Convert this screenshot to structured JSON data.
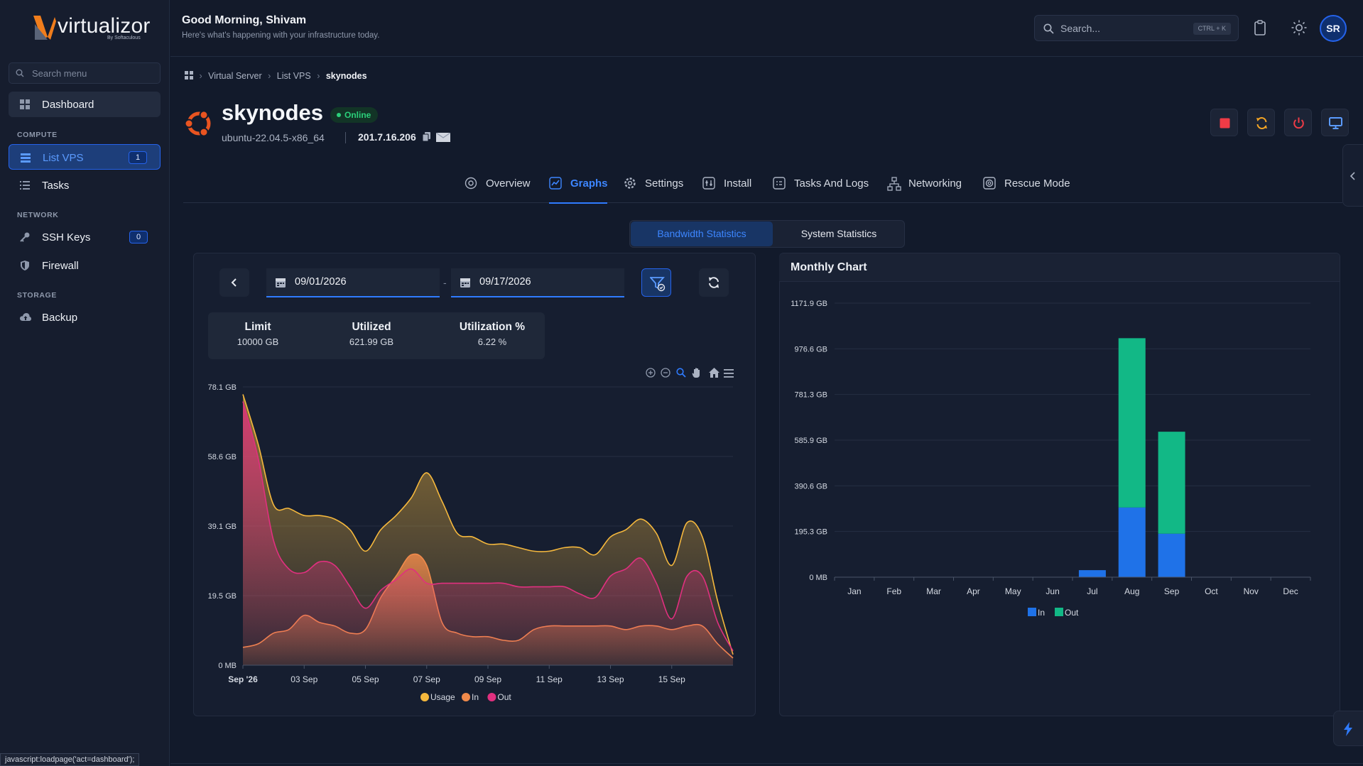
{
  "app": {
    "logo_text": "virtualizor",
    "logo_sub": "By Softaculous"
  },
  "sidebar": {
    "search_placeholder": "Search menu",
    "dashboard": "Dashboard",
    "sections": {
      "compute": "COMPUTE",
      "network": "NETWORK",
      "storage": "STORAGE"
    },
    "items": {
      "list_vps": {
        "label": "List VPS",
        "count": "1"
      },
      "tasks": {
        "label": "Tasks"
      },
      "ssh_keys": {
        "label": "SSH Keys",
        "count": "0"
      },
      "firewall": {
        "label": "Firewall"
      },
      "backup": {
        "label": "Backup"
      }
    },
    "status_url": "javascript:loadpage('act=dashboard');"
  },
  "header": {
    "greeting": "Good Morning, Shivam",
    "subtitle": "Here's what's happening with your infrastructure today.",
    "search_placeholder": "Search...",
    "search_shortcut": "CTRL + K",
    "avatar": "SR"
  },
  "breadcrumb": {
    "item1": "Virtual Server",
    "item2": "List VPS",
    "current": "skynodes"
  },
  "vps": {
    "name": "skynodes",
    "status": "Online",
    "os": "ubuntu-22.04.5-x86_64",
    "ip": "201.7.16.206"
  },
  "tabs": {
    "overview": "Overview",
    "graphs": "Graphs",
    "settings": "Settings",
    "install": "Install",
    "tasks_logs": "Tasks And Logs",
    "networking": "Networking",
    "rescue": "Rescue Mode"
  },
  "subtabs": {
    "bandwidth": "Bandwidth Statistics",
    "system": "System Statistics"
  },
  "filters": {
    "date_from": "09/01/2026",
    "date_to": "09/17/2026",
    "separator": "-"
  },
  "usage": {
    "limit_label": "Limit",
    "limit_value": "10000 GB",
    "utilized_label": "Utilized",
    "utilized_value": "621.99 GB",
    "pct_label": "Utilization %",
    "pct_value": "6.22 %"
  },
  "monthly": {
    "title": "Monthly Chart"
  },
  "colors": {
    "accent": "#2f7bff",
    "online": "#2bd07a",
    "usage": "#f5b83d",
    "in_area": "#f08a4b",
    "out_area": "#e0307f",
    "bar_in": "#1f72e8",
    "bar_out": "#12b886"
  },
  "chart_data": [
    {
      "type": "area",
      "y_ticks": [
        "78.1 GB",
        "58.6 GB",
        "39.1 GB",
        "19.5 GB",
        "0 MB"
      ],
      "ylim_gb": [
        0,
        78.1
      ],
      "x_ticks": [
        "Sep '26",
        "03 Sep",
        "05 Sep",
        "07 Sep",
        "09 Sep",
        "11 Sep",
        "13 Sep",
        "15 Sep"
      ],
      "x_days": [
        1,
        1.5,
        2,
        2.5,
        3,
        3.5,
        4,
        4.5,
        5,
        5.5,
        6,
        6.5,
        7,
        7.5,
        8,
        8.5,
        9,
        9.5,
        10,
        10.5,
        11,
        11.5,
        12,
        12.5,
        13,
        13.5,
        14,
        14.5,
        15,
        15.5,
        16,
        16.5,
        17
      ],
      "series": [
        {
          "name": "Usage",
          "values": [
            76,
            62,
            45,
            44,
            42,
            42,
            41,
            38,
            32,
            38,
            42,
            47,
            54,
            46,
            37,
            36,
            34,
            34,
            33,
            32,
            32,
            33,
            33,
            31,
            36,
            38,
            41,
            37,
            28,
            40,
            36,
            18,
            3
          ]
        },
        {
          "name": "In",
          "values": [
            5,
            6,
            9,
            10,
            14,
            12,
            11,
            9,
            10,
            19,
            25,
            31,
            28,
            12,
            9,
            8,
            8,
            7,
            7,
            10,
            11,
            11,
            11,
            11,
            11,
            10,
            11,
            11,
            10,
            11,
            11,
            6,
            2
          ]
        },
        {
          "name": "Out",
          "values": [
            74,
            58,
            35,
            27,
            26,
            29,
            28,
            22,
            16,
            21,
            24,
            27,
            23,
            23,
            23,
            23,
            23,
            23,
            22,
            22,
            22,
            22,
            20,
            19,
            25,
            27,
            30,
            23,
            13,
            25,
            25,
            12,
            4
          ]
        }
      ],
      "toolbar_icons": [
        "zoom-in-icon",
        "zoom-out-icon",
        "selection-zoom-icon",
        "pan-icon",
        "reset-zoom-icon",
        "menu-icon"
      ],
      "legend": "bottom"
    },
    {
      "type": "bar",
      "stacked": true,
      "categories": [
        "Jan",
        "Feb",
        "Mar",
        "Apr",
        "May",
        "Jun",
        "Jul",
        "Aug",
        "Sep",
        "Oct",
        "Nov",
        "Dec"
      ],
      "y_ticks": [
        "1171.9 GB",
        "976.6 GB",
        "781.3 GB",
        "585.9 GB",
        "390.6 GB",
        "195.3 GB",
        "0 MB"
      ],
      "ylim_gb": [
        0,
        1171.9
      ],
      "series": [
        {
          "name": "In",
          "values": [
            0,
            0,
            0,
            0,
            0,
            0,
            30,
            298,
            186,
            0,
            0,
            0
          ]
        },
        {
          "name": "Out",
          "values": [
            0,
            0,
            0,
            0,
            0,
            0,
            0,
            724,
            436,
            0,
            0,
            0
          ]
        }
      ],
      "legend": "bottom"
    }
  ]
}
